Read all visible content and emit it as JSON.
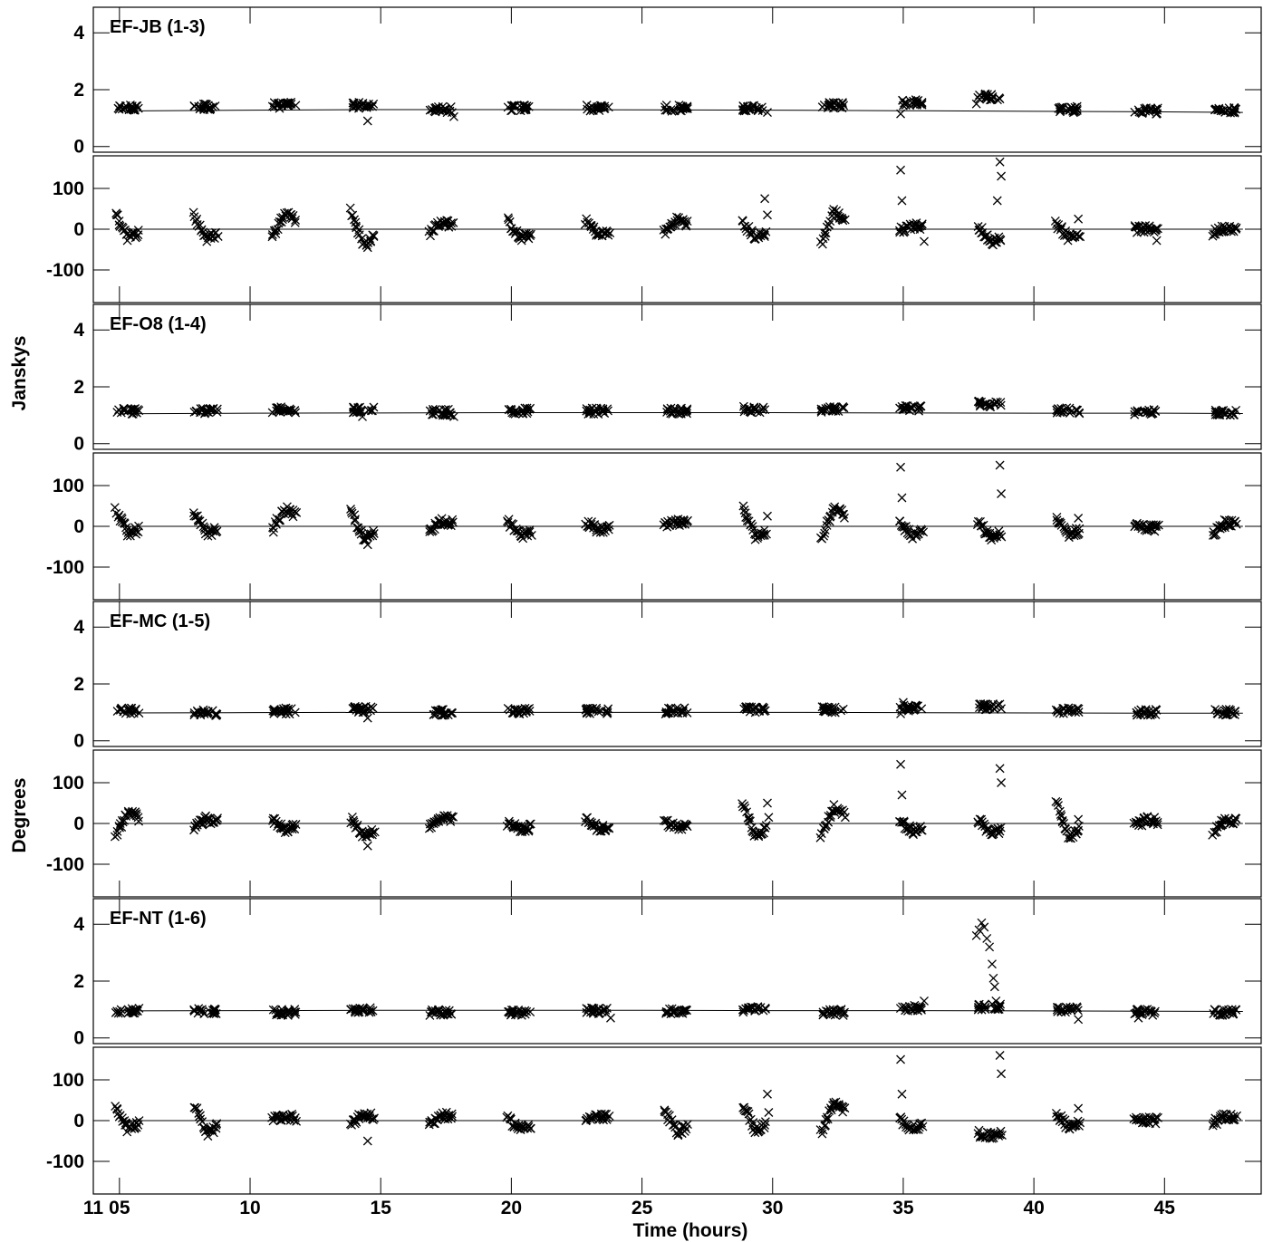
{
  "chart_data": {
    "type": "scatter",
    "x_label": "Time (hours)",
    "x_day_label": "11",
    "x_range": [
      4.0,
      48.7
    ],
    "x_ticks": [
      5,
      10,
      15,
      20,
      25,
      30,
      35,
      40,
      45
    ],
    "x_tick_labels": [
      "05",
      "10",
      "15",
      "20",
      "25",
      "30",
      "35",
      "40",
      "45"
    ],
    "y_labels": {
      "amplitude": "Janskys",
      "phase": "Degrees"
    },
    "amplitude_range": [
      -0.2,
      4.9
    ],
    "amplitude_ticks": [
      0,
      2,
      4
    ],
    "phase_range": [
      -180,
      180
    ],
    "phase_ticks": [
      -100,
      0,
      100
    ],
    "scan_centers": [
      5.3,
      8.3,
      11.3,
      14.3,
      17.3,
      20.3,
      23.3,
      26.3,
      29.3,
      32.3,
      35.3,
      38.3,
      41.3,
      44.3,
      47.3
    ],
    "baselines": [
      {
        "label": "EF-JB (1-3)",
        "amp_model": [
          [
            5,
            1.25
          ],
          [
            10,
            1.28
          ],
          [
            15,
            1.3
          ],
          [
            20,
            1.3
          ],
          [
            25,
            1.29
          ],
          [
            30,
            1.28
          ],
          [
            35,
            1.26
          ],
          [
            40,
            1.24
          ],
          [
            45,
            1.22
          ],
          [
            48,
            1.2
          ]
        ],
        "amp_scans": [
          1.35,
          1.4,
          1.45,
          1.45,
          1.3,
          1.35,
          1.35,
          1.35,
          1.35,
          1.45,
          1.55,
          1.75,
          1.3,
          1.25,
          1.28
        ],
        "amp_outliers": [
          [
            14.5,
            0.9
          ],
          [
            17.8,
            1.05
          ],
          [
            29.8,
            1.2
          ],
          [
            34.9,
            1.15
          ],
          [
            37.8,
            1.5
          ]
        ],
        "phase_scans": [
          [
            35,
            -20
          ],
          [
            35,
            -25
          ],
          [
            -20,
            45
          ],
          [
            45,
            -40
          ],
          [
            -10,
            20
          ],
          [
            20,
            -25
          ],
          [
            20,
            -15
          ],
          [
            -10,
            25
          ],
          [
            15,
            -20
          ],
          [
            -35,
            45
          ],
          [
            -5,
            10
          ],
          [
            10,
            -35
          ],
          [
            15,
            -20
          ],
          [
            0,
            0
          ],
          [
            -10,
            5
          ]
        ],
        "phase_outliers": [
          [
            14.5,
            -45
          ],
          [
            29.7,
            75
          ],
          [
            29.8,
            35
          ],
          [
            34.9,
            145
          ],
          [
            34.95,
            70
          ],
          [
            35.8,
            -30
          ],
          [
            38.7,
            165
          ],
          [
            38.75,
            130
          ],
          [
            38.6,
            70
          ],
          [
            41.7,
            25
          ],
          [
            44.7,
            -28
          ]
        ]
      },
      {
        "label": "EF-O8 (1-4)",
        "amp_model": [
          [
            5,
            1.05
          ],
          [
            10,
            1.07
          ],
          [
            15,
            1.08
          ],
          [
            20,
            1.09
          ],
          [
            25,
            1.09
          ],
          [
            30,
            1.09
          ],
          [
            35,
            1.08
          ],
          [
            40,
            1.07
          ],
          [
            45,
            1.07
          ],
          [
            48,
            1.06
          ]
        ],
        "amp_scans": [
          1.15,
          1.15,
          1.2,
          1.2,
          1.1,
          1.15,
          1.15,
          1.15,
          1.2,
          1.2,
          1.25,
          1.4,
          1.15,
          1.1,
          1.1
        ],
        "amp_outliers": [
          [
            14.3,
            0.95
          ],
          [
            17.8,
            0.95
          ],
          [
            37.9,
            1.5
          ]
        ],
        "phase_scans": [
          [
            40,
            -20
          ],
          [
            30,
            -20
          ],
          [
            -10,
            45
          ],
          [
            40,
            -35
          ],
          [
            -10,
            15
          ],
          [
            15,
            -25
          ],
          [
            10,
            -10
          ],
          [
            0,
            10
          ],
          [
            50,
            -30
          ],
          [
            -30,
            50
          ],
          [
            10,
            -25
          ],
          [
            10,
            -30
          ],
          [
            15,
            -20
          ],
          [
            5,
            -5
          ],
          [
            -20,
            10
          ]
        ],
        "phase_outliers": [
          [
            14.5,
            -45
          ],
          [
            29.8,
            25
          ],
          [
            34.9,
            145
          ],
          [
            34.95,
            70
          ],
          [
            38.7,
            150
          ],
          [
            38.75,
            80
          ],
          [
            41.7,
            20
          ]
        ]
      },
      {
        "label": "EF-MC (1-5)",
        "amp_model": [
          [
            5,
            0.98
          ],
          [
            10,
            0.99
          ],
          [
            15,
            1.0
          ],
          [
            20,
            1.0
          ],
          [
            25,
            1.0
          ],
          [
            30,
            1.0
          ],
          [
            35,
            0.99
          ],
          [
            40,
            0.98
          ],
          [
            45,
            0.97
          ],
          [
            48,
            0.97
          ]
        ],
        "amp_scans": [
          1.05,
          1.0,
          1.05,
          1.1,
          1.0,
          1.05,
          1.05,
          1.05,
          1.1,
          1.1,
          1.15,
          1.2,
          1.05,
          1.0,
          1.0
        ],
        "amp_outliers": [
          [
            14.5,
            0.8
          ],
          [
            34.9,
            0.95
          ],
          [
            35.0,
            1.35
          ]
        ],
        "phase_scans": [
          [
            -30,
            30
          ],
          [
            -10,
            10
          ],
          [
            10,
            -15
          ],
          [
            10,
            -30
          ],
          [
            -10,
            15
          ],
          [
            0,
            -15
          ],
          [
            10,
            -15
          ],
          [
            5,
            -10
          ],
          [
            50,
            -30
          ],
          [
            -30,
            40
          ],
          [
            10,
            -20
          ],
          [
            10,
            -25
          ],
          [
            50,
            -35
          ],
          [
            -5,
            10
          ],
          [
            -20,
            10
          ]
        ],
        "phase_outliers": [
          [
            14.5,
            -55
          ],
          [
            29.8,
            50
          ],
          [
            29.85,
            15
          ],
          [
            34.9,
            145
          ],
          [
            34.95,
            70
          ],
          [
            38.7,
            135
          ],
          [
            38.75,
            100
          ],
          [
            41.7,
            10
          ]
        ]
      },
      {
        "label": "EF-NT (1-6)",
        "amp_model": [
          [
            5,
            0.95
          ],
          [
            10,
            0.96
          ],
          [
            15,
            0.97
          ],
          [
            20,
            0.97
          ],
          [
            25,
            0.97
          ],
          [
            30,
            0.96
          ],
          [
            35,
            0.96
          ],
          [
            40,
            0.95
          ],
          [
            45,
            0.94
          ],
          [
            48,
            0.93
          ]
        ],
        "amp_scans": [
          0.95,
          0.95,
          0.9,
          1.0,
          0.9,
          0.9,
          0.95,
          0.95,
          1.0,
          0.9,
          1.05,
          1.1,
          1.0,
          0.9,
          0.9
        ],
        "amp_outliers": [
          [
            37.8,
            3.6
          ],
          [
            37.9,
            3.8
          ],
          [
            38.0,
            4.05
          ],
          [
            38.1,
            3.9
          ],
          [
            38.2,
            3.5
          ],
          [
            38.3,
            3.2
          ],
          [
            38.4,
            2.6
          ],
          [
            38.45,
            2.1
          ],
          [
            38.5,
            1.8
          ],
          [
            38.55,
            1.3
          ],
          [
            35.8,
            1.3
          ],
          [
            23.8,
            0.7
          ],
          [
            41.7,
            0.65
          ],
          [
            44.0,
            0.7
          ]
        ],
        "phase_scans": [
          [
            35,
            -20
          ],
          [
            40,
            -35
          ],
          [
            5,
            10
          ],
          [
            -5,
            15
          ],
          [
            -10,
            15
          ],
          [
            5,
            -20
          ],
          [
            5,
            10
          ],
          [
            25,
            -30
          ],
          [
            40,
            -25
          ],
          [
            -30,
            45
          ],
          [
            5,
            -20
          ],
          [
            -30,
            -40
          ],
          [
            15,
            -15
          ],
          [
            5,
            0
          ],
          [
            -5,
            10
          ]
        ],
        "phase_outliers": [
          [
            14.5,
            -50
          ],
          [
            29.8,
            65
          ],
          [
            29.85,
            20
          ],
          [
            34.9,
            150
          ],
          [
            34.95,
            65
          ],
          [
            38.7,
            160
          ],
          [
            38.75,
            115
          ],
          [
            41.7,
            30
          ]
        ]
      }
    ]
  }
}
